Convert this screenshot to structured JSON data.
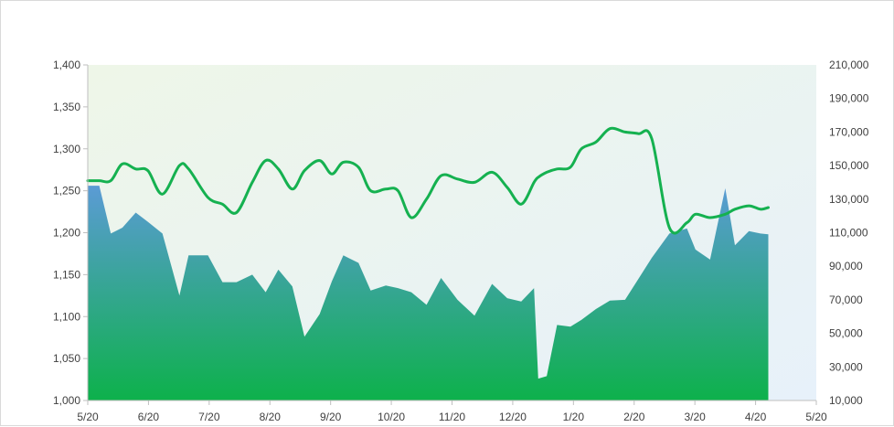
{
  "chart_data": {
    "type": "area+line",
    "title": "",
    "x_ticks": [
      "5/20",
      "6/20",
      "7/20",
      "8/20",
      "9/20",
      "10/20",
      "11/20",
      "12/20",
      "1/20",
      "2/20",
      "3/20",
      "4/20",
      "5/20"
    ],
    "y_left": {
      "min": 1000,
      "max": 1400,
      "step": 50,
      "ticks": [
        "1,000",
        "1,050",
        "1,100",
        "1,150",
        "1,200",
        "1,250",
        "1,300",
        "1,350",
        "1,400"
      ]
    },
    "y_right": {
      "min": 10000,
      "max": 210000,
      "step": 20000,
      "ticks": [
        "10,000",
        "30,000",
        "50,000",
        "70,000",
        "90,000",
        "110,000",
        "130,000",
        "150,000",
        "170,000",
        "190,000",
        "210,000"
      ]
    },
    "series": [
      {
        "type": "area",
        "axis": "left",
        "colors": {
          "top": "#5b9bd5",
          "bottom": "#0db14b"
        },
        "x_index": [
          0,
          0.19,
          0.38,
          0.57,
          0.79,
          0.99,
          1.23,
          1.51,
          1.66,
          1.98,
          2.22,
          2.45,
          2.71,
          2.93,
          3.14,
          3.37,
          3.57,
          3.82,
          4.02,
          4.21,
          4.46,
          4.66,
          4.91,
          5.11,
          5.33,
          5.58,
          5.82,
          6.09,
          6.37,
          6.66,
          6.91,
          7.14,
          7.35,
          7.42,
          7.56,
          7.73,
          7.95,
          8.13,
          8.37,
          8.6,
          8.85,
          9.07,
          9.29,
          9.58,
          9.87,
          10.01,
          10.25,
          10.5,
          10.66,
          10.89,
          11.08,
          11.21
        ],
        "values": [
          1256,
          1256,
          1199,
          1206,
          1224,
          1213,
          1199,
          1125,
          1173,
          1173,
          1141,
          1141,
          1150,
          1129,
          1156,
          1136,
          1076,
          1103,
          1142,
          1173,
          1164,
          1131,
          1137,
          1134,
          1129,
          1114,
          1146,
          1120,
          1101,
          1139,
          1122,
          1118,
          1134,
          1026,
          1029,
          1090,
          1088,
          1096,
          1109,
          1119,
          1120,
          1145,
          1170,
          1199,
          1205,
          1180,
          1168,
          1253,
          1185,
          1202,
          1199,
          1198
        ]
      },
      {
        "type": "line",
        "axis": "right",
        "color": "#15b150",
        "x_index": [
          0,
          0.19,
          0.38,
          0.57,
          0.79,
          0.99,
          1.23,
          1.51,
          1.66,
          1.98,
          2.22,
          2.45,
          2.71,
          2.93,
          3.14,
          3.37,
          3.57,
          3.82,
          4.02,
          4.21,
          4.46,
          4.66,
          4.91,
          5.11,
          5.33,
          5.58,
          5.82,
          6.09,
          6.37,
          6.66,
          6.91,
          7.14,
          7.35,
          7.42,
          7.56,
          7.73,
          7.95,
          8.13,
          8.37,
          8.6,
          8.85,
          9.07,
          9.29,
          9.58,
          9.87,
          10.01,
          10.25,
          10.5,
          10.66,
          10.89,
          11.08,
          11.21
        ],
        "values": [
          141000,
          141000,
          141000,
          151000,
          148000,
          147000,
          133000,
          150000,
          148000,
          131000,
          127000,
          122000,
          140000,
          153000,
          148000,
          136000,
          147000,
          153000,
          145000,
          152000,
          149000,
          135000,
          136000,
          135000,
          119000,
          130000,
          144000,
          142000,
          140000,
          146000,
          137000,
          127000,
          140000,
          143000,
          146000,
          148000,
          149000,
          160000,
          164000,
          172000,
          170000,
          169000,
          166000,
          113000,
          116000,
          121000,
          119000,
          121000,
          124000,
          126000,
          124000,
          125000
        ]
      }
    ],
    "grid": false,
    "plot_background": {
      "from": "#eef6e8",
      "to": "#e7f1fa"
    }
  }
}
